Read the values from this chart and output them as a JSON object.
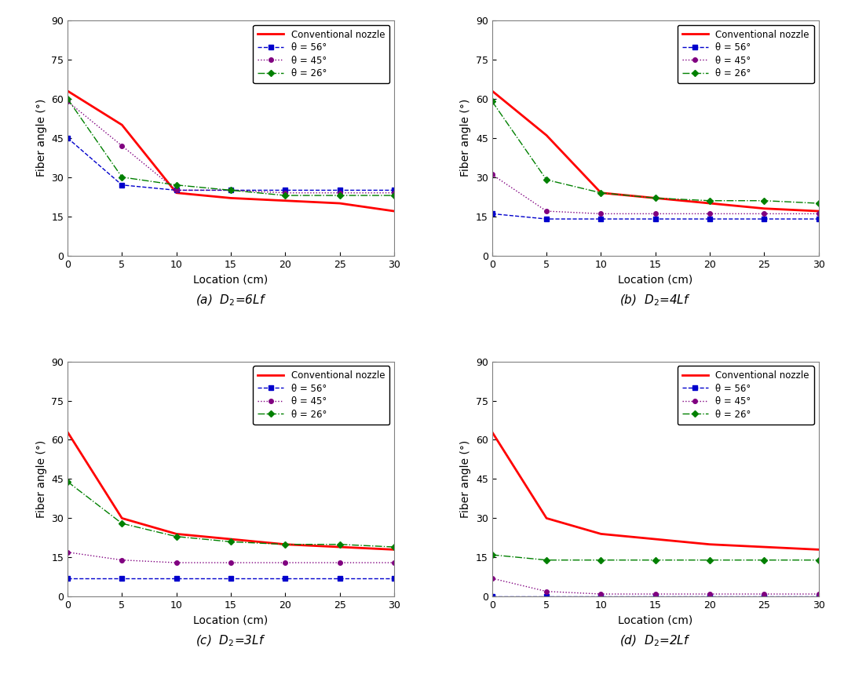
{
  "x": [
    0,
    5,
    10,
    15,
    20,
    25,
    30
  ],
  "subplots": [
    {
      "label": "(a)  D$_2$=6Lf",
      "conventional": [
        63,
        50,
        24,
        22,
        21,
        20,
        17
      ],
      "theta56": [
        45,
        27,
        25,
        25,
        25,
        25,
        25
      ],
      "theta45": [
        59,
        42,
        25,
        25,
        24,
        24,
        24
      ],
      "theta26": [
        60,
        30,
        27,
        25,
        23,
        23,
        23
      ]
    },
    {
      "label": "(b)  D$_2$=4Lf",
      "conventional": [
        63,
        46,
        24,
        22,
        20,
        18,
        17
      ],
      "theta56": [
        16,
        14,
        14,
        14,
        14,
        14,
        14
      ],
      "theta45": [
        31,
        17,
        16,
        16,
        16,
        16,
        16
      ],
      "theta26": [
        59,
        29,
        24,
        22,
        21,
        21,
        20
      ]
    },
    {
      "label": "(c)  D$_2$=3Lf",
      "conventional": [
        63,
        30,
        24,
        22,
        20,
        19,
        18
      ],
      "theta56": [
        7,
        7,
        7,
        7,
        7,
        7,
        7
      ],
      "theta45": [
        17,
        14,
        13,
        13,
        13,
        13,
        13
      ],
      "theta26": [
        44,
        28,
        23,
        21,
        20,
        20,
        19
      ]
    },
    {
      "label": "(d)  D$_2$=2Lf",
      "conventional": [
        63,
        30,
        24,
        22,
        20,
        19,
        18
      ],
      "theta56": [
        0,
        0,
        0,
        0,
        0,
        0,
        0
      ],
      "theta45": [
        7,
        2,
        1,
        1,
        1,
        1,
        1
      ],
      "theta26": [
        16,
        14,
        14,
        14,
        14,
        14,
        14
      ]
    }
  ],
  "colors": {
    "conventional": "#ff0000",
    "theta56": "#0000cc",
    "theta45": "#800080",
    "theta26": "#008000"
  },
  "ylim": [
    0,
    90
  ],
  "xlim": [
    0,
    30
  ],
  "yticks": [
    0,
    15,
    30,
    45,
    60,
    75,
    90
  ],
  "xticks": [
    0,
    5,
    10,
    15,
    20,
    25,
    30
  ],
  "ylabel": "Fiber angle (°)",
  "xlabel": "Location (cm)",
  "legend_labels": [
    "Conventional nozzle",
    "θ = 56°",
    "θ = 45°",
    "θ = 26°"
  ],
  "bg_color": "#ffffff"
}
